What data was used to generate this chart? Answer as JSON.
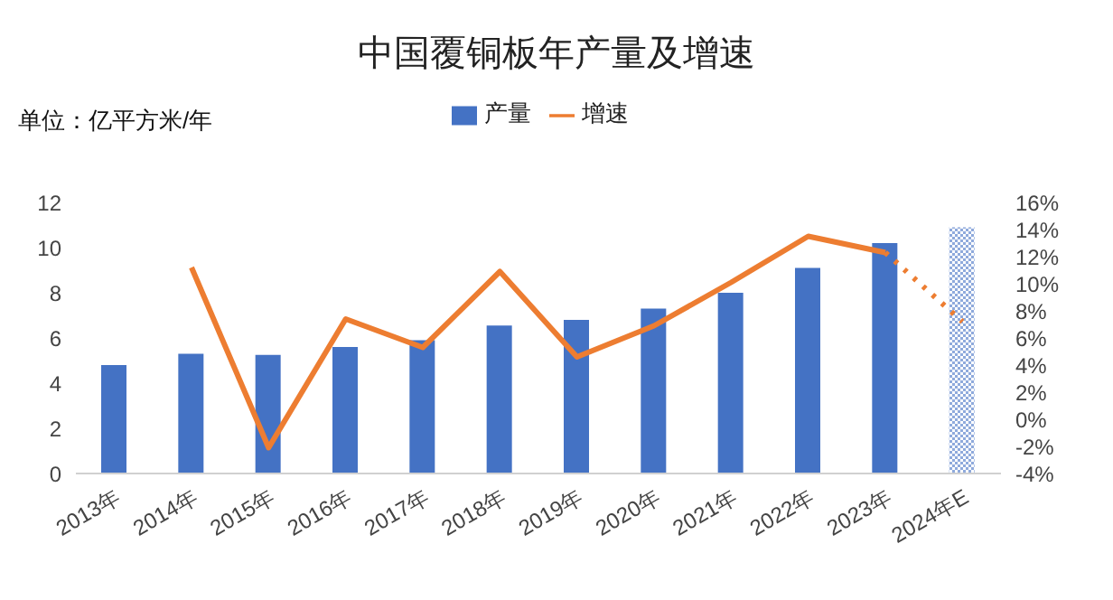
{
  "chart_data": {
    "type": "bar",
    "title": "中国覆铜板年产量及增速",
    "ylabel": "单位：亿平方米/年",
    "categories": [
      "2013年",
      "2014年",
      "2015年",
      "2016年",
      "2017年",
      "2018年",
      "2019年",
      "2020年",
      "2021年",
      "2022年",
      "2023年",
      "2024年E"
    ],
    "series": [
      {
        "name": "产量",
        "color": "#4472c4",
        "colors": [
          "#4472c4",
          "#4472c4",
          "#4472c4",
          "#4472c4",
          "#4472c4",
          "#4472c4",
          "#4472c4",
          "#4472c4",
          "#4472c4",
          "#4472c4",
          "#4472c4",
          "#8faadc"
        ],
        "values": [
          4.8,
          5.3,
          5.25,
          5.6,
          5.9,
          6.55,
          6.8,
          7.3,
          8.0,
          9.1,
          10.2,
          10.9
        ]
      },
      {
        "name": "增速",
        "type": "line",
        "axis": "y2",
        "color": "#ed7d31",
        "line_style": "solid",
        "values": [
          null,
          11.2,
          -2.1,
          7.4,
          5.3,
          10.9,
          4.6,
          6.9,
          10.1,
          13.5,
          12.3,
          null
        ]
      },
      {
        "type": "line",
        "axis": "y2",
        "color": "#ed7d31",
        "line_style": "dotted",
        "values": [
          null,
          null,
          null,
          null,
          null,
          null,
          null,
          null,
          null,
          null,
          12.3,
          7.2
        ]
      }
    ],
    "ylim": [
      0,
      12
    ],
    "yticks": [
      0,
      2,
      4,
      6,
      8,
      10,
      12
    ],
    "y2lim": [
      -4,
      16
    ],
    "y2ticks": [
      {
        "value": -4,
        "label": "-4%"
      },
      {
        "value": -2,
        "label": "-2%"
      },
      {
        "value": 0,
        "label": "0%"
      },
      {
        "value": 2,
        "label": "2%"
      },
      {
        "value": 4,
        "label": "4%"
      },
      {
        "value": 6,
        "label": "6%"
      },
      {
        "value": 8,
        "label": "8%"
      },
      {
        "value": 10,
        "label": "10%"
      },
      {
        "value": 12,
        "label": "12%"
      },
      {
        "value": 14,
        "label": "14%"
      },
      {
        "value": 16,
        "label": "16%"
      }
    ],
    "grid": false,
    "legend": "top",
    "marker": "none"
  }
}
